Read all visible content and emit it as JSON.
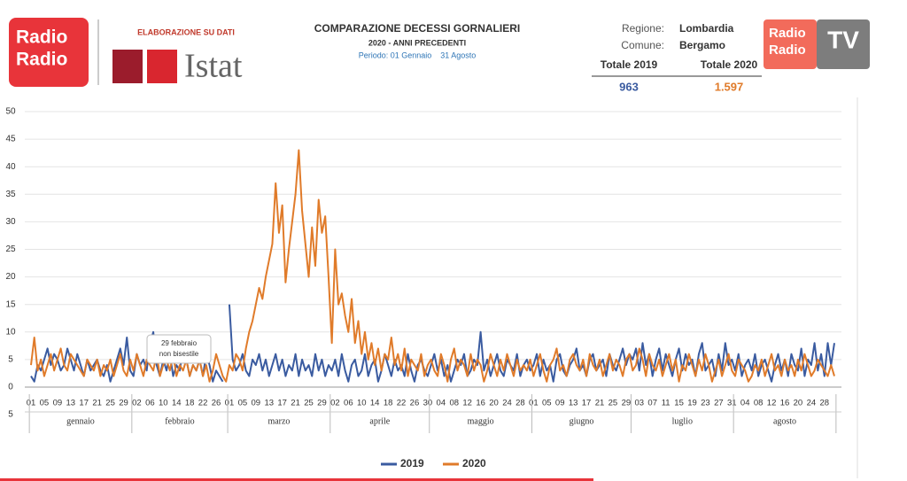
{
  "header": {
    "logo_left": [
      "Radio",
      "Radio"
    ],
    "source_note": "ELABORAZIONE SU DATI",
    "source": "Istat",
    "logo_right": [
      "Radio",
      "Radio"
    ],
    "logo_tv": "TV",
    "region_label": "Regione:",
    "region": "Lombardia",
    "town_label": "Comune:",
    "town": "Bergamo",
    "total_2019_label": "Totale 2019",
    "total_2020_label": "Totale 2020",
    "total_2019": "963",
    "total_2020": "1.597"
  },
  "chart_data": {
    "type": "line",
    "title": "COMPARAZIONE DECESSI GORNALIERI",
    "subtitle": "2020 - ANNI PRECEDENTI",
    "period": "Periodo: 01 Gennaio    31 Agosto",
    "annotation": [
      "29 febbraio",
      "non bisestile"
    ],
    "months": [
      "gennaio",
      "febbraio",
      "marzo",
      "aprile",
      "maggio",
      "giugno",
      "luglio",
      "agosto"
    ],
    "categories": [
      "01",
      null,
      null,
      null,
      "05",
      null,
      null,
      null,
      "09",
      null,
      null,
      null,
      "13",
      null,
      null,
      null,
      "17",
      null,
      null,
      null,
      "21",
      null,
      null,
      null,
      "25",
      null,
      null,
      null,
      "29",
      null,
      null,
      null,
      "02",
      null,
      null,
      null,
      "06",
      null,
      null,
      null,
      "10",
      null,
      null,
      null,
      "14",
      null,
      null,
      null,
      "18",
      null,
      null,
      null,
      "22",
      null,
      null,
      null,
      "26",
      null,
      null,
      null,
      "01",
      null,
      null,
      null,
      "05",
      null,
      null,
      null,
      "09",
      null,
      null,
      null,
      "13",
      null,
      null,
      null,
      "17",
      null,
      null,
      null,
      "21",
      null,
      null,
      null,
      "25",
      null,
      null,
      null,
      "29",
      null,
      null,
      null,
      "02",
      null,
      null,
      null,
      "06",
      null,
      null,
      null,
      "10",
      null,
      null,
      null,
      "14",
      null,
      null,
      null,
      "18",
      null,
      null,
      null,
      "22",
      null,
      null,
      null,
      "26",
      null,
      null,
      null,
      "30",
      null,
      null,
      null,
      "04",
      null,
      null,
      null,
      "08",
      null,
      null,
      null,
      "12",
      null,
      null,
      null,
      "16",
      null,
      null,
      null,
      "20",
      null,
      null,
      null,
      "24",
      null,
      null,
      null,
      "28",
      null,
      null,
      null,
      "01",
      null,
      null,
      null,
      "05",
      null,
      null,
      null,
      "09",
      null,
      null,
      null,
      "13",
      null,
      null,
      null,
      "17",
      null,
      null,
      null,
      "21",
      null,
      null,
      null,
      "25",
      null,
      null,
      null,
      "29",
      null,
      null,
      null,
      "03",
      null,
      null,
      null,
      "07",
      null,
      null,
      null,
      "11",
      null,
      null,
      null,
      "15",
      null,
      null,
      null,
      "19",
      null,
      null,
      null,
      "23",
      null,
      null,
      null,
      "27",
      null,
      null,
      null,
      "31",
      null,
      null,
      null,
      "04",
      null,
      null,
      null,
      "08",
      null,
      null,
      null,
      "12",
      null,
      null,
      null,
      "16",
      null,
      null,
      null,
      "20",
      null,
      null,
      null,
      "24",
      null,
      null,
      null,
      "28",
      null,
      null,
      null
    ],
    "series": [
      {
        "name": "2019",
        "color": "#3a5ba0",
        "values": [
          2,
          1,
          4,
          3,
          5,
          7,
          4,
          6,
          5,
          3,
          4,
          7,
          5,
          3,
          6,
          4,
          2,
          5,
          3,
          4,
          5,
          3,
          2,
          4,
          1,
          3,
          5,
          7,
          4,
          9,
          3,
          2,
          6,
          4,
          5,
          3,
          8,
          10,
          4,
          2,
          5,
          3,
          6,
          2,
          4,
          3,
          7,
          5,
          2,
          4,
          3,
          5,
          2,
          6,
          4,
          1,
          3,
          2,
          1,
          null,
          15,
          5,
          3,
          4,
          6,
          3,
          2,
          5,
          4,
          6,
          3,
          5,
          2,
          4,
          6,
          3,
          5,
          2,
          4,
          3,
          6,
          2,
          5,
          3,
          4,
          2,
          6,
          3,
          5,
          2,
          4,
          3,
          5,
          2,
          6,
          3,
          1,
          4,
          5,
          2,
          3,
          6,
          2,
          4,
          5,
          1,
          3,
          6,
          4,
          2,
          5,
          3,
          4,
          2,
          6,
          3,
          1,
          4,
          5,
          3,
          2,
          4,
          6,
          3,
          5,
          2,
          4,
          1,
          3,
          5,
          4,
          6,
          2,
          3,
          5,
          4,
          10,
          3,
          5,
          2,
          4,
          6,
          3,
          2,
          5,
          4,
          3,
          6,
          2,
          4,
          5,
          3,
          4,
          6,
          2,
          5,
          3,
          4,
          1,
          5,
          6,
          3,
          2,
          4,
          5,
          7,
          3,
          4,
          2,
          5,
          6,
          3,
          4,
          5,
          2,
          6,
          4,
          3,
          5,
          7,
          4,
          6,
          5,
          7,
          3,
          8,
          4,
          6,
          2,
          5,
          7,
          3,
          6,
          4,
          2,
          5,
          7,
          3,
          6,
          4,
          5,
          2,
          6,
          8,
          3,
          4,
          5,
          2,
          6,
          3,
          8,
          4,
          5,
          3,
          6,
          2,
          4,
          5,
          3,
          6,
          2,
          4,
          5,
          3,
          1,
          4,
          6,
          3,
          5,
          2,
          6,
          4,
          3,
          7,
          2,
          5,
          4,
          8,
          3,
          6,
          2,
          8,
          4,
          8
        ]
      },
      {
        "name": "2020",
        "color": "#e07b2a",
        "values": [
          4,
          9,
          3,
          5,
          2,
          4,
          6,
          3,
          5,
          7,
          4,
          3,
          6,
          5,
          4,
          3,
          2,
          5,
          4,
          3,
          5,
          2,
          4,
          3,
          5,
          2,
          4,
          6,
          3,
          2,
          5,
          3,
          6,
          4,
          2,
          5,
          4,
          3,
          6,
          2,
          4,
          5,
          3,
          6,
          2,
          4,
          3,
          5,
          2,
          4,
          3,
          5,
          2,
          4,
          1,
          3,
          6,
          4,
          2,
          1,
          4,
          3,
          6,
          5,
          3,
          7,
          10,
          12,
          15,
          18,
          16,
          20,
          23,
          26,
          37,
          28,
          33,
          19,
          25,
          30,
          35,
          43,
          32,
          26,
          20,
          29,
          22,
          34,
          28,
          31,
          20,
          8,
          25,
          15,
          17,
          13,
          10,
          16,
          8,
          12,
          6,
          10,
          5,
          8,
          4,
          7,
          3,
          6,
          5,
          9,
          4,
          6,
          3,
          7,
          2,
          5,
          4,
          3,
          6,
          2,
          4,
          5,
          3,
          2,
          6,
          4,
          1,
          5,
          7,
          3,
          5,
          4,
          2,
          6,
          3,
          5,
          4,
          1,
          3,
          6,
          4,
          2,
          5,
          3,
          6,
          4,
          2,
          5,
          3,
          4,
          3,
          5,
          2,
          4,
          6,
          3,
          1,
          4,
          5,
          7,
          3,
          4,
          2,
          5,
          6,
          4,
          3,
          5,
          2,
          6,
          4,
          3,
          5,
          2,
          4,
          6,
          3,
          5,
          4,
          2,
          5,
          6,
          3,
          4,
          7,
          5,
          2,
          6,
          4,
          3,
          5,
          2,
          4,
          6,
          3,
          5,
          1,
          4,
          3,
          6,
          4,
          2,
          5,
          3,
          6,
          4,
          1,
          3,
          5,
          2,
          4,
          6,
          3,
          2,
          5,
          4,
          3,
          1,
          2,
          4,
          3,
          5,
          2,
          4,
          6,
          3,
          4,
          2,
          5,
          3,
          4,
          2,
          5,
          3,
          6,
          4,
          2,
          3,
          5,
          4,
          3,
          2,
          4,
          2
        ]
      }
    ],
    "ylim": [
      -5,
      50
    ],
    "yticks": [
      {
        "value": -5,
        "label": "5"
      },
      0,
      5,
      10,
      15,
      20,
      25,
      30,
      35,
      40,
      45,
      50
    ],
    "grid": true
  }
}
